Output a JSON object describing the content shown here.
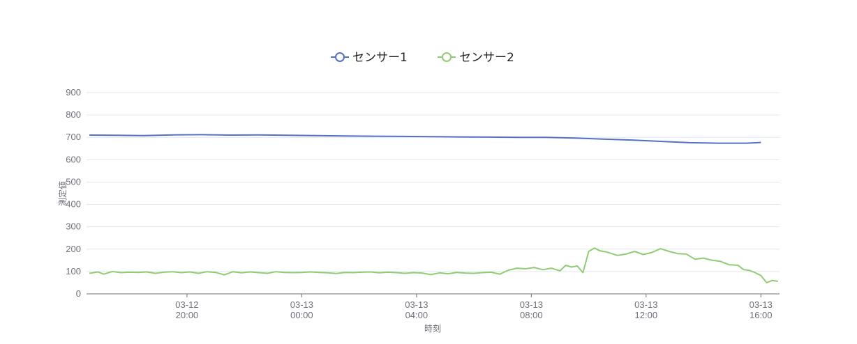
{
  "chart_data": {
    "type": "line",
    "xlabel": "時刻",
    "ylabel": "測定値",
    "ylim": [
      0,
      900
    ],
    "yticks": [
      0,
      100,
      200,
      300,
      400,
      500,
      600,
      700,
      800,
      900
    ],
    "grid": true,
    "legend_position": "top-center",
    "xticks": [
      {
        "x": 20,
        "date": "03-12",
        "time": "20:00"
      },
      {
        "x": 24,
        "date": "03-13",
        "time": "00:00"
      },
      {
        "x": 28,
        "date": "03-13",
        "time": "04:00"
      },
      {
        "x": 32,
        "date": "03-13",
        "time": "08:00"
      },
      {
        "x": 36,
        "date": "03-13",
        "time": "12:00"
      },
      {
        "x": 40,
        "date": "03-13",
        "time": "16:00"
      }
    ],
    "xlim": [
      16.5,
      40.65
    ],
    "series": [
      {
        "name": "センサー1",
        "color": "#5470c6",
        "x": [
          16.6,
          17.5,
          18.5,
          19.5,
          20.5,
          21.5,
          22.5,
          23.5,
          24.5,
          25.5,
          26.5,
          27.5,
          28.5,
          29.5,
          30.5,
          31.5,
          32.5,
          33.5,
          34.5,
          35.5,
          36.5,
          37.5,
          38.5,
          39.5,
          40.0
        ],
        "y": [
          710,
          709,
          708,
          711,
          712,
          710,
          711,
          709,
          708,
          706,
          705,
          704,
          703,
          702,
          701,
          700,
          700,
          697,
          692,
          688,
          682,
          676,
          674,
          674,
          677
        ]
      },
      {
        "name": "センサー2",
        "color": "#91cc75",
        "x": [
          16.6,
          16.9,
          17.1,
          17.4,
          17.7,
          18.0,
          18.3,
          18.6,
          18.9,
          19.2,
          19.5,
          19.8,
          20.1,
          20.4,
          20.7,
          21.0,
          21.3,
          21.6,
          21.9,
          22.2,
          22.5,
          22.8,
          23.1,
          23.4,
          23.7,
          24.0,
          24.3,
          24.6,
          24.9,
          25.2,
          25.5,
          25.8,
          26.1,
          26.4,
          26.7,
          27.0,
          27.3,
          27.6,
          27.9,
          28.2,
          28.5,
          28.8,
          29.1,
          29.4,
          29.7,
          30.0,
          30.3,
          30.6,
          30.9,
          31.2,
          31.5,
          31.8,
          32.1,
          32.4,
          32.7,
          33.0,
          33.2,
          33.4,
          33.6,
          33.8,
          34.0,
          34.2,
          34.4,
          34.6,
          34.8,
          35.0,
          35.3,
          35.6,
          35.9,
          36.2,
          36.5,
          36.8,
          37.1,
          37.4,
          37.7,
          38.0,
          38.3,
          38.6,
          38.9,
          39.2,
          39.4,
          39.6,
          39.8,
          40.0,
          40.2,
          40.4,
          40.6
        ],
        "y": [
          92,
          98,
          88,
          100,
          95,
          97,
          96,
          98,
          92,
          97,
          99,
          95,
          98,
          92,
          99,
          96,
          85,
          99,
          94,
          98,
          95,
          92,
          99,
          96,
          95,
          96,
          98,
          96,
          94,
          91,
          96,
          95,
          97,
          98,
          94,
          97,
          95,
          92,
          95,
          93,
          86,
          94,
          90,
          96,
          93,
          92,
          95,
          97,
          88,
          106,
          115,
          112,
          118,
          108,
          115,
          103,
          128,
          120,
          125,
          95,
          190,
          205,
          192,
          188,
          180,
          172,
          178,
          190,
          176,
          185,
          202,
          190,
          180,
          178,
          155,
          160,
          150,
          145,
          130,
          128,
          108,
          105,
          95,
          82,
          50,
          60,
          56
        ]
      }
    ]
  }
}
